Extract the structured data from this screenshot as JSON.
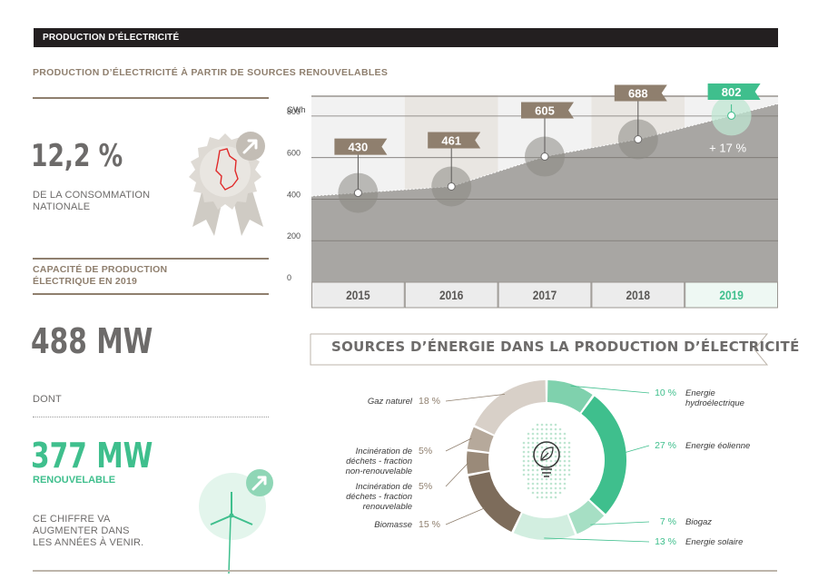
{
  "header": {
    "title": "PRODUCTION D’ÉLECTRICITÉ"
  },
  "section": {
    "subtitle": "PRODUCTION D’ÉLECTRICITÉ À PARTIR DE SOURCES RENOUVELABLES"
  },
  "consumption": {
    "value": "12,2 %",
    "label_line1": "DE LA CONSOMMATION",
    "label_line2": "NATIONALE"
  },
  "capacity": {
    "title_line1": "CAPACITÉ DE PRODUCTION",
    "title_line2": "ÉLECTRIQUE EN 2019",
    "total": "488 MW",
    "dont": "DONT",
    "renewable_value": "377 MW",
    "renewable_label": "RENOUVELABLE",
    "note_line1": "CE CHIFFRE VA",
    "note_line2": "AUGMENTER DANS",
    "note_line3": "LES ANNÉES À VENIR."
  },
  "colors": {
    "accent_green": "#3fbf8d",
    "taupe": "#8f7f6e",
    "dark": "#231f20",
    "grey": "#6d6b6a"
  },
  "icons": [
    "medal-luxembourg-icon",
    "arrow-up-right-icon",
    "wind-turbine-icon",
    "lightbulb-leaf-icon"
  ],
  "chart_data": [
    {
      "type": "area",
      "ylabel": "GWh",
      "ylim": [
        0,
        900
      ],
      "yticks": [
        0,
        200,
        400,
        600,
        800
      ],
      "categories": [
        "2015",
        "2016",
        "2017",
        "2018",
        "2019"
      ],
      "values": [
        430,
        461,
        605,
        688,
        802
      ],
      "value_labels": [
        "430",
        "461",
        "605",
        "688",
        "802"
      ],
      "annotation": "+ 17 %",
      "highlight_category": "2019"
    },
    {
      "type": "pie",
      "title": "SOURCES D’ÉNERGIE DANS LA PRODUCTION D’ÉLECTRICITÉ",
      "slices": [
        {
          "label": "Energie hydroélectrique",
          "line1": "Energie",
          "line2": "hydroélectrique",
          "line3": "",
          "pct_label": "10 %",
          "value": 10,
          "color": "#7fd1ad",
          "side": "right"
        },
        {
          "label": "Energie éolienne",
          "line1": "Energie éolienne",
          "line2": "",
          "line3": "",
          "pct_label": "27 %",
          "value": 27,
          "color": "#3fbf8d",
          "side": "right"
        },
        {
          "label": "Biogaz",
          "line1": "Biogaz",
          "line2": "",
          "line3": "",
          "pct_label": "7 %",
          "value": 7,
          "color": "#a6dfc4",
          "side": "right"
        },
        {
          "label": "Energie solaire",
          "line1": "Energie solaire",
          "line2": "",
          "line3": "",
          "pct_label": "13 %",
          "value": 13,
          "color": "#d2eee0",
          "side": "right"
        },
        {
          "label": "Biomasse",
          "line1": "Biomasse",
          "line2": "",
          "line3": "",
          "pct_label": "15 %",
          "value": 15,
          "color": "#7d6c5b",
          "side": "left"
        },
        {
          "label": "Incinération de déchets - fraction renouvelable",
          "line1": "Incinération de",
          "line2": "déchets - fraction",
          "line3": "renouvelable",
          "pct_label": "5%",
          "value": 5,
          "color": "#9a8a79",
          "side": "left"
        },
        {
          "label": "Incinération de déchets - fraction non-renouvelable",
          "line1": "Incinération de",
          "line2": "déchets - fraction",
          "line3": "non-renouvelable",
          "pct_label": "5%",
          "value": 5,
          "color": "#b6a99b",
          "side": "left"
        },
        {
          "label": "Gaz naturel",
          "line1": "Gaz naturel",
          "line2": "",
          "line3": "",
          "pct_label": "18 %",
          "value": 18,
          "color": "#d8d0c8",
          "side": "left"
        }
      ]
    }
  ]
}
